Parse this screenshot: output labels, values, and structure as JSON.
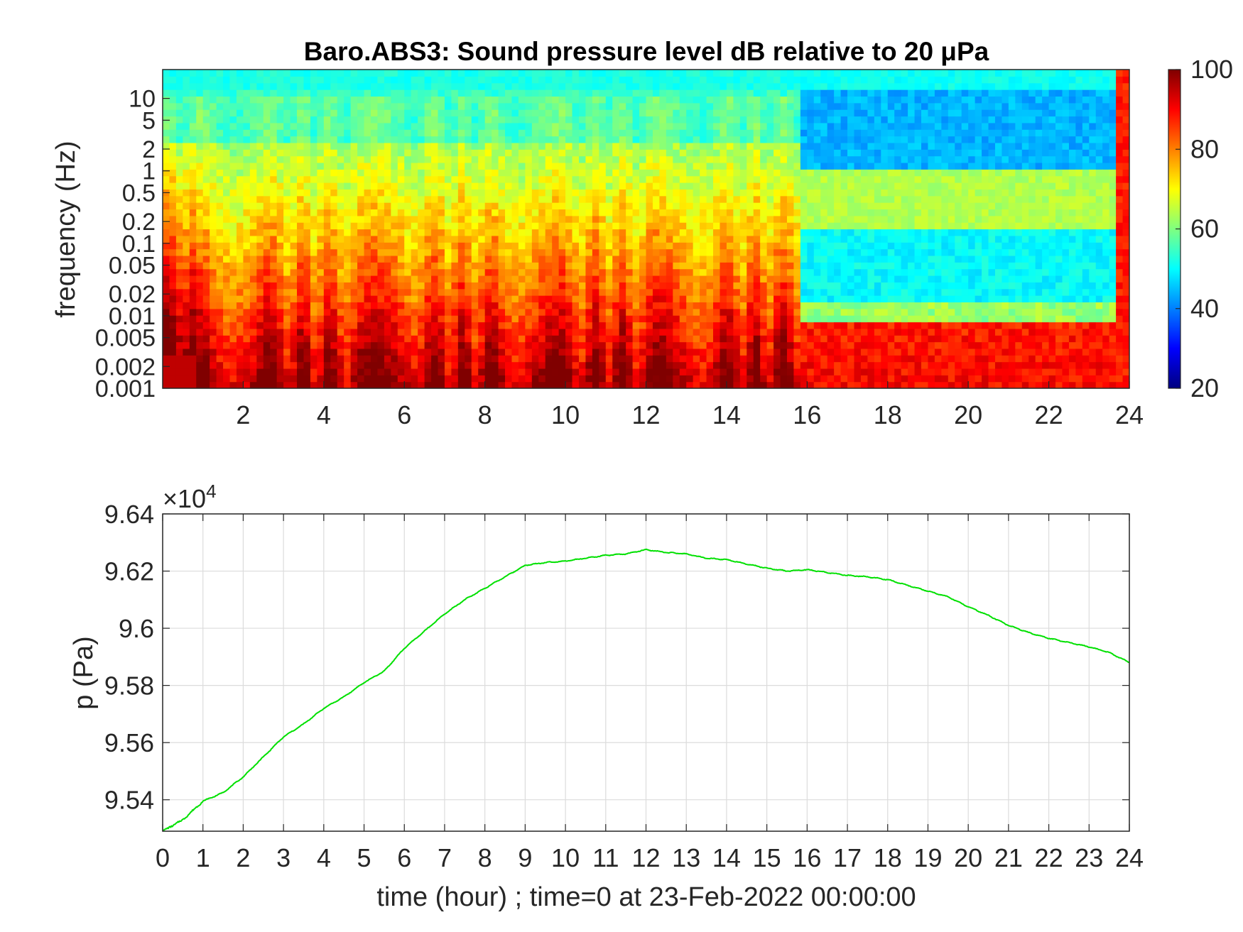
{
  "chart_data": [
    {
      "type": "heatmap",
      "title": "Baro.ABS3: Sound pressure level dB relative to 20 μPa",
      "xlabel": "",
      "ylabel": "frequency (Hz)",
      "xlim": [
        0,
        24
      ],
      "x_ticks": [
        2,
        4,
        6,
        8,
        10,
        12,
        14,
        16,
        18,
        20,
        22,
        24
      ],
      "y_scale": "log",
      "ylim": [
        0.001,
        25
      ],
      "y_ticks": [
        0.001,
        0.002,
        0.005,
        0.01,
        0.02,
        0.05,
        0.1,
        0.2,
        0.5,
        1,
        2,
        5,
        10
      ],
      "y_tick_labels": [
        "0.001",
        "0.002",
        "0.005",
        "0.01",
        "0.02",
        "0.05",
        "0.1",
        "0.2",
        "0.5",
        "1",
        "2",
        "5",
        "10"
      ],
      "colorbar": {
        "min": 20,
        "max": 100,
        "ticks": [
          20,
          40,
          60,
          80,
          100
        ],
        "colormap": "jet"
      },
      "grid": false
    },
    {
      "type": "line",
      "title": "",
      "xlabel": "time (hour) ; time=0 at 23-Feb-2022 00:00:00",
      "ylabel": "p (Pa)",
      "xlim": [
        0,
        24
      ],
      "ylim": [
        95290,
        96400
      ],
      "x_ticks": [
        0,
        1,
        2,
        3,
        4,
        5,
        6,
        7,
        8,
        9,
        10,
        11,
        12,
        13,
        14,
        15,
        16,
        17,
        18,
        19,
        20,
        21,
        22,
        23,
        24
      ],
      "y_ticks": [
        9.54,
        9.56,
        9.58,
        9.6,
        9.62,
        9.64
      ],
      "y_tick_labels": [
        "9.54",
        "9.56",
        "9.58",
        "9.6",
        "9.62",
        "9.64"
      ],
      "y_exponent_base": "×10",
      "y_exponent_power": "4",
      "grid": true,
      "line_color": "#00e000",
      "series": [
        {
          "x": [
            0,
            0.5,
            1,
            1.5,
            2,
            2.5,
            3,
            3.5,
            4,
            4.5,
            5,
            5.5,
            6,
            6.5,
            7,
            7.5,
            8,
            8.5,
            9,
            9.5,
            10,
            10.5,
            11,
            11.5,
            12,
            12.5,
            13,
            13.5,
            14,
            14.5,
            15,
            15.5,
            16,
            16.5,
            17,
            17.5,
            18,
            18.5,
            19,
            19.5,
            20,
            20.5,
            21,
            21.5,
            22,
            22.5,
            23,
            23.5,
            24
          ],
          "y": [
            95290,
            95330,
            95395,
            95425,
            95480,
            95550,
            95620,
            95665,
            95720,
            95760,
            95810,
            95850,
            95930,
            95990,
            96050,
            96100,
            96140,
            96180,
            96220,
            96230,
            96235,
            96245,
            96255,
            96260,
            96275,
            96265,
            96260,
            96245,
            96240,
            96225,
            96210,
            96200,
            96205,
            96195,
            96185,
            96180,
            96170,
            96150,
            96130,
            96110,
            96075,
            96045,
            96010,
            95985,
            95965,
            95950,
            95935,
            95915,
            95880
          ]
        }
      ]
    }
  ]
}
